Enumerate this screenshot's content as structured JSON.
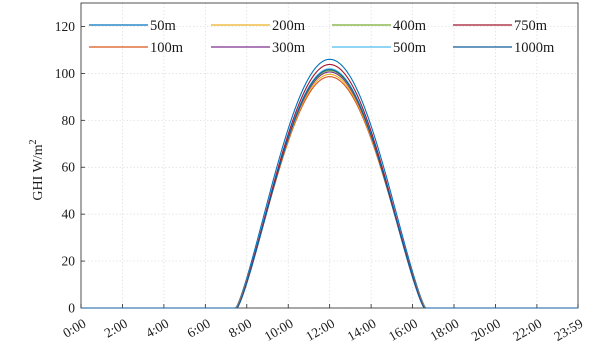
{
  "chart_data": {
    "type": "line",
    "title": "",
    "xlabel": "",
    "ylabel": "GHI W/m",
    "ylabel_superscript": "2",
    "x_ticks": [
      "0:00",
      "2:00",
      "4:00",
      "6:00",
      "8:00",
      "10:00",
      "12:00",
      "14:00",
      "16:00",
      "18:00",
      "20:00",
      "22:00",
      "23:59"
    ],
    "y_ticks": [
      "0",
      "20",
      "40",
      "60",
      "80",
      "100",
      "120"
    ],
    "ylim": [
      0,
      130
    ],
    "grid": true,
    "legend_position": "top",
    "legend_columns": 4,
    "curve_shape": {
      "sunrise": "7:30",
      "sunset": "16:36",
      "noon": "12:00"
    },
    "series": [
      {
        "name": "50m",
        "color": "#0072BD",
        "peak": 106
      },
      {
        "name": "100m",
        "color": "#D95319",
        "peak": 98.6
      },
      {
        "name": "200m",
        "color": "#EDB120",
        "peak": 99.6
      },
      {
        "name": "300m",
        "color": "#7E2F8E",
        "peak": 100.6
      },
      {
        "name": "400m",
        "color": "#77AC30",
        "peak": 101.2
      },
      {
        "name": "500m",
        "color": "#4DBEEE",
        "peak": 102
      },
      {
        "name": "750m",
        "color": "#A2142F",
        "peak": 103.8
      },
      {
        "name": "1000m",
        "color": "#0F5E9C",
        "peak": 101.6
      }
    ]
  }
}
